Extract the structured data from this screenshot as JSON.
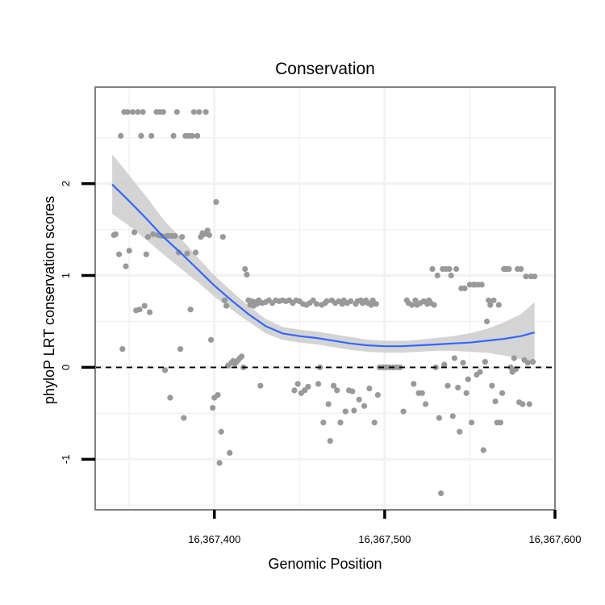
{
  "chart_data": {
    "type": "scatter",
    "title": "Conservation",
    "xlabel": "Genomic Position",
    "ylabel": "phyloP LRT conservation scores",
    "xlim": [
      16367330,
      16367600
    ],
    "ylim": [
      -1.55,
      3.05
    ],
    "x_ticks": [
      16367400,
      16367500,
      16367600
    ],
    "x_tick_labels": [
      "16,367,400",
      "16,367,500",
      "16,367,600"
    ],
    "y_ticks": [
      -1,
      0,
      1,
      2
    ],
    "y_tick_labels": [
      "-1",
      "0",
      "1",
      "2"
    ],
    "grid": true,
    "reference_line": {
      "y": 0,
      "style": "dashed"
    },
    "colors": {
      "points": "#999999",
      "smooth_line": "#3366FF",
      "ribbon": "#cccccc",
      "reference": "#000000"
    },
    "points": [
      [
        16367341,
        1.44
      ],
      [
        16367342,
        1.45
      ],
      [
        16367344,
        1.23
      ],
      [
        16367345,
        2.52
      ],
      [
        16367346,
        0.2
      ],
      [
        16367347,
        2.78
      ],
      [
        16367348,
        1.1
      ],
      [
        16367349,
        2.78
      ],
      [
        16367350,
        1.27
      ],
      [
        16367352,
        2.78
      ],
      [
        16367353,
        1.47
      ],
      [
        16367354,
        0.62
      ],
      [
        16367355,
        2.78
      ],
      [
        16367356,
        0.63
      ],
      [
        16367357,
        2.52
      ],
      [
        16367358,
        2.78
      ],
      [
        16367359,
        0.67
      ],
      [
        16367360,
        1.23
      ],
      [
        16367361,
        1.42
      ],
      [
        16367362,
        0.6
      ],
      [
        16367363,
        2.52
      ],
      [
        16367364,
        1.45
      ],
      [
        16367366,
        2.78
      ],
      [
        16367367,
        1.44
      ],
      [
        16367368,
        2.78
      ],
      [
        16367369,
        1.43
      ],
      [
        16367370,
        2.78
      ],
      [
        16367371,
        -0.03
      ],
      [
        16367372,
        1.43
      ],
      [
        16367373,
        1.43
      ],
      [
        16367374,
        -0.33
      ],
      [
        16367375,
        1.43
      ],
      [
        16367376,
        2.52
      ],
      [
        16367377,
        1.43
      ],
      [
        16367378,
        2.78
      ],
      [
        16367379,
        1.25
      ],
      [
        16367380,
        0.2
      ],
      [
        16367381,
        1.42
      ],
      [
        16367382,
        -0.55
      ],
      [
        16367383,
        2.52
      ],
      [
        16367384,
        1.24
      ],
      [
        16367385,
        2.52
      ],
      [
        16367386,
        0.63
      ],
      [
        16367387,
        2.52
      ],
      [
        16367388,
        2.78
      ],
      [
        16367389,
        1.25
      ],
      [
        16367390,
        2.52
      ],
      [
        16367391,
        2.78
      ],
      [
        16367392,
        1.42
      ],
      [
        16367393,
        1.46
      ],
      [
        16367394,
        1.45
      ],
      [
        16367395,
        2.78
      ],
      [
        16367396,
        1.49
      ],
      [
        16367397,
        1.44
      ],
      [
        16367398,
        0.3
      ],
      [
        16367399,
        -0.44
      ],
      [
        16367400,
        -0.33
      ],
      [
        16367401,
        1.8
      ],
      [
        16367402,
        -0.3
      ],
      [
        16367403,
        -1.04
      ],
      [
        16367404,
        -0.7
      ],
      [
        16367405,
        1.42
      ],
      [
        16367406,
        0.73
      ],
      [
        16367407,
        0.67
      ],
      [
        16367408,
        0.02
      ],
      [
        16367409,
        -0.93
      ],
      [
        16367410,
        0.05
      ],
      [
        16367411,
        0.07
      ],
      [
        16367412,
        0.04
      ],
      [
        16367413,
        0.06
      ],
      [
        16367414,
        0.08
      ],
      [
        16367415,
        0.1
      ],
      [
        16367416,
        0.12
      ],
      [
        16367417,
        0.0
      ],
      [
        16367418,
        1.07
      ],
      [
        16367419,
        1.01
      ],
      [
        16367420,
        0.73
      ],
      [
        16367421,
        0.68
      ],
      [
        16367422,
        0.72
      ],
      [
        16367423,
        0.67
      ],
      [
        16367424,
        0.71
      ],
      [
        16367425,
        0.69
      ],
      [
        16367426,
        0.73
      ],
      [
        16367427,
        -0.2
      ],
      [
        16367428,
        0.7
      ],
      [
        16367430,
        0.71
      ],
      [
        16367432,
        0.73
      ],
      [
        16367434,
        0.7
      ],
      [
        16367436,
        0.73
      ],
      [
        16367438,
        0.72
      ],
      [
        16367440,
        0.73
      ],
      [
        16367442,
        0.72
      ],
      [
        16367444,
        0.73
      ],
      [
        16367446,
        0.7
      ],
      [
        16367447,
        -0.25
      ],
      [
        16367448,
        0.73
      ],
      [
        16367449,
        -0.18
      ],
      [
        16367450,
        0.72
      ],
      [
        16367451,
        -0.28
      ],
      [
        16367452,
        0.69
      ],
      [
        16367453,
        -0.25
      ],
      [
        16367454,
        0.68
      ],
      [
        16367455,
        -0.21
      ],
      [
        16367456,
        0.7
      ],
      [
        16367458,
        0.73
      ],
      [
        16367460,
        0.69
      ],
      [
        16367461,
        -0.18
      ],
      [
        16367462,
        0.0
      ],
      [
        16367463,
        0.68
      ],
      [
        16367464,
        -0.6
      ],
      [
        16367465,
        0.7
      ],
      [
        16367466,
        0.72
      ],
      [
        16367467,
        -0.4
      ],
      [
        16367468,
        -0.8
      ],
      [
        16367469,
        0.73
      ],
      [
        16367470,
        -0.2
      ],
      [
        16367471,
        0.7
      ],
      [
        16367472,
        -0.25
      ],
      [
        16367473,
        0.72
      ],
      [
        16367474,
        -0.6
      ],
      [
        16367475,
        0.69
      ],
      [
        16367476,
        0.73
      ],
      [
        16367477,
        -0.48
      ],
      [
        16367478,
        0.7
      ],
      [
        16367479,
        -0.25
      ],
      [
        16367480,
        0.72
      ],
      [
        16367481,
        -0.26
      ],
      [
        16367482,
        -0.47
      ],
      [
        16367483,
        0.69
      ],
      [
        16367484,
        0.72
      ],
      [
        16367485,
        -0.35
      ],
      [
        16367486,
        0.73
      ],
      [
        16367487,
        0.7
      ],
      [
        16367488,
        -0.42
      ],
      [
        16367489,
        0.73
      ],
      [
        16367490,
        0.7
      ],
      [
        16367491,
        -0.23
      ],
      [
        16367492,
        0.68
      ],
      [
        16367493,
        0.73
      ],
      [
        16367494,
        -0.6
      ],
      [
        16367495,
        0.69
      ],
      [
        16367496,
        -0.3
      ],
      [
        16367497,
        0.0
      ],
      [
        16367499,
        0.0
      ],
      [
        16367501,
        0.0
      ],
      [
        16367503,
        0.0
      ],
      [
        16367505,
        0.0
      ],
      [
        16367507,
        0.0
      ],
      [
        16367509,
        0.0
      ],
      [
        16367511,
        -0.48
      ],
      [
        16367513,
        0.73
      ],
      [
        16367514,
        0.7
      ],
      [
        16367516,
        0.68
      ],
      [
        16367517,
        -0.18
      ],
      [
        16367518,
        0.73
      ],
      [
        16367519,
        0.68
      ],
      [
        16367520,
        -0.28
      ],
      [
        16367521,
        0.7
      ],
      [
        16367522,
        -0.28
      ],
      [
        16367523,
        0.72
      ],
      [
        16367524,
        -0.4
      ],
      [
        16367525,
        0.69
      ],
      [
        16367526,
        0.73
      ],
      [
        16367527,
        0.7
      ],
      [
        16367528,
        1.07
      ],
      [
        16367529,
        0.68
      ],
      [
        16367530,
        0.0
      ],
      [
        16367531,
        1.0
      ],
      [
        16367532,
        -0.55
      ],
      [
        16367533,
        -1.37
      ],
      [
        16367534,
        1.07
      ],
      [
        16367535,
        0.03
      ],
      [
        16367536,
        1.07
      ],
      [
        16367537,
        -0.2
      ],
      [
        16367538,
        1.07
      ],
      [
        16367539,
        1.0
      ],
      [
        16367540,
        -0.53
      ],
      [
        16367541,
        0.1
      ],
      [
        16367542,
        1.07
      ],
      [
        16367543,
        -0.22
      ],
      [
        16367544,
        -0.7
      ],
      [
        16367545,
        0.86
      ],
      [
        16367546,
        0.05
      ],
      [
        16367547,
        0.86
      ],
      [
        16367548,
        -0.28
      ],
      [
        16367549,
        -0.13
      ],
      [
        16367550,
        0.9
      ],
      [
        16367551,
        -0.6
      ],
      [
        16367552,
        0.9
      ],
      [
        16367553,
        0.9
      ],
      [
        16367554,
        -0.08
      ],
      [
        16367555,
        0.9
      ],
      [
        16367556,
        -0.05
      ],
      [
        16367557,
        0.9
      ],
      [
        16367558,
        -0.9
      ],
      [
        16367559,
        0.06
      ],
      [
        16367560,
        0.5
      ],
      [
        16367561,
        0.73
      ],
      [
        16367562,
        0.68
      ],
      [
        16367563,
        -0.2
      ],
      [
        16367564,
        0.73
      ],
      [
        16367565,
        -0.37
      ],
      [
        16367566,
        -0.6
      ],
      [
        16367567,
        0.68
      ],
      [
        16367568,
        -0.6
      ],
      [
        16367569,
        -0.28
      ],
      [
        16367570,
        1.07
      ],
      [
        16367571,
        1.07
      ],
      [
        16367572,
        1.07
      ],
      [
        16367573,
        1.07
      ],
      [
        16367574,
        0.0
      ],
      [
        16367575,
        -0.05
      ],
      [
        16367576,
        0.1
      ],
      [
        16367577,
        -0.02
      ],
      [
        16367578,
        1.07
      ],
      [
        16367579,
        -0.38
      ],
      [
        16367580,
        1.07
      ],
      [
        16367581,
        -0.4
      ],
      [
        16367582,
        0.08
      ],
      [
        16367583,
        0.99
      ],
      [
        16367584,
        0.05
      ],
      [
        16367585,
        -0.4
      ],
      [
        16367586,
        0.99
      ],
      [
        16367587,
        0.06
      ],
      [
        16367588,
        0.99
      ]
    ],
    "smooth": {
      "x": [
        16367340,
        16367350,
        16367360,
        16367370,
        16367380,
        16367390,
        16367400,
        16367410,
        16367420,
        16367430,
        16367440,
        16367450,
        16367460,
        16367470,
        16367480,
        16367490,
        16367500,
        16367510,
        16367520,
        16367530,
        16367540,
        16367550,
        16367560,
        16367570,
        16367580,
        16367588
      ],
      "y": [
        1.99,
        1.81,
        1.62,
        1.42,
        1.25,
        1.07,
        0.89,
        0.73,
        0.58,
        0.45,
        0.37,
        0.34,
        0.32,
        0.29,
        0.26,
        0.24,
        0.23,
        0.23,
        0.24,
        0.25,
        0.26,
        0.27,
        0.29,
        0.31,
        0.34,
        0.38
      ],
      "upper": [
        2.32,
        2.09,
        1.86,
        1.61,
        1.41,
        1.2,
        1.0,
        0.83,
        0.67,
        0.53,
        0.44,
        0.41,
        0.39,
        0.36,
        0.33,
        0.3,
        0.29,
        0.29,
        0.3,
        0.32,
        0.34,
        0.37,
        0.42,
        0.49,
        0.58,
        0.71
      ],
      "lower": [
        1.67,
        1.54,
        1.39,
        1.23,
        1.08,
        0.93,
        0.77,
        0.63,
        0.5,
        0.37,
        0.3,
        0.27,
        0.25,
        0.22,
        0.19,
        0.17,
        0.16,
        0.16,
        0.17,
        0.18,
        0.18,
        0.17,
        0.16,
        0.13,
        0.09,
        0.05
      ]
    }
  }
}
